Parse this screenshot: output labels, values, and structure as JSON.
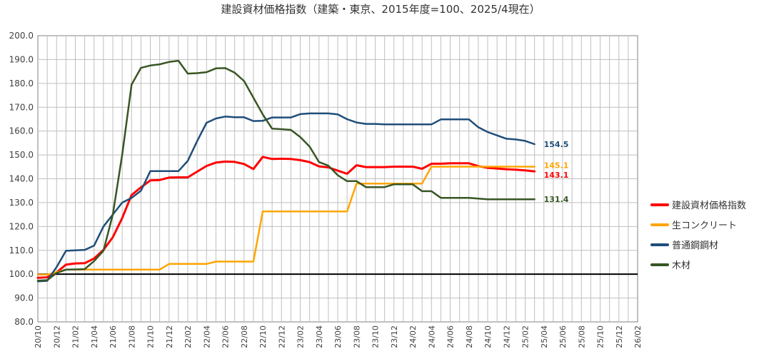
{
  "chart_data": {
    "type": "line",
    "title": "建設資材価格指数（建築・東京、2015年度=100、2025/4現在）",
    "ylim": [
      80,
      200
    ],
    "yticks": [
      "80.0",
      "90.0",
      "100.0",
      "110.0",
      "120.0",
      "130.0",
      "140.0",
      "150.0",
      "160.0",
      "170.0",
      "180.0",
      "190.0",
      "200.0"
    ],
    "reference_line": 100,
    "grid": true,
    "legend_position": "right",
    "x_labels": [
      "20/10",
      "20/12",
      "21/02",
      "21/04",
      "21/06",
      "21/08",
      "21/10",
      "21/12",
      "22/02",
      "22/04",
      "22/06",
      "22/08",
      "22/10",
      "22/12",
      "23/02",
      "23/04",
      "23/06",
      "23/08",
      "23/10",
      "23/12",
      "24/02",
      "24/04",
      "24/06",
      "24/08",
      "24/10",
      "24/12",
      "25/02",
      "25/04",
      "25/06",
      "25/08",
      "25/10",
      "25/12",
      "26/02"
    ],
    "series": [
      {
        "name": "建設資材価格指数",
        "color": "#ff0000",
        "width": 3,
        "end_label": "143.1",
        "values": [
          98.5,
          98.7,
          100.8,
          104.0,
          104.5,
          104.6,
          106.6,
          110.2,
          115.5,
          123.5,
          133.2,
          136.4,
          139.3,
          139.5,
          140.5,
          140.6,
          140.6,
          143.0,
          145.4,
          146.8,
          147.2,
          147.1,
          146.2,
          144.1,
          149.2,
          148.3,
          148.4,
          148.3,
          147.8,
          147.0,
          145.2,
          144.8,
          143.4,
          142.1,
          145.7,
          144.9,
          144.9,
          144.9,
          145.1,
          145.1,
          145.1,
          144.2,
          146.3,
          146.3,
          146.5,
          146.5,
          146.5,
          145.3,
          144.6,
          144.3,
          144.0,
          143.8,
          143.5,
          143.1
        ]
      },
      {
        "name": "生コンクリート",
        "color": "#ffa500",
        "width": 2.5,
        "end_label": "145.1",
        "values": [
          99.8,
          99.8,
          100.9,
          101.9,
          101.9,
          101.9,
          101.9,
          101.9,
          101.9,
          101.9,
          101.9,
          101.9,
          101.9,
          101.9,
          104.3,
          104.3,
          104.3,
          104.3,
          104.3,
          105.3,
          105.3,
          105.3,
          105.3,
          105.3,
          126.3,
          126.3,
          126.3,
          126.3,
          126.3,
          126.3,
          126.3,
          126.3,
          126.3,
          126.3,
          138.0,
          138.0,
          138.0,
          138.0,
          138.0,
          138.0,
          138.0,
          138.0,
          145.1,
          145.1,
          145.1,
          145.1,
          145.1,
          145.1,
          145.1,
          145.1,
          145.1,
          145.1,
          145.1,
          145.1
        ]
      },
      {
        "name": "普通鋼鋼材",
        "color": "#1f4e79",
        "width": 2.5,
        "end_label": "154.5",
        "values": [
          97.0,
          97.2,
          103.0,
          109.8,
          110.0,
          110.2,
          112.0,
          120.0,
          125.0,
          130.0,
          132.0,
          135.0,
          143.2,
          143.2,
          143.2,
          143.2,
          147.5,
          155.8,
          163.5,
          165.3,
          166.1,
          165.8,
          165.8,
          164.2,
          164.3,
          165.7,
          165.7,
          165.7,
          167.1,
          167.4,
          167.4,
          167.4,
          167.0,
          165.0,
          163.6,
          163.0,
          163.0,
          162.8,
          162.8,
          162.8,
          162.8,
          162.8,
          162.8,
          164.9,
          164.9,
          164.9,
          164.9,
          161.6,
          159.6,
          158.2,
          156.8,
          156.5,
          155.9,
          154.5
        ]
      },
      {
        "name": "木材",
        "color": "#375623",
        "width": 2.5,
        "end_label": "131.4",
        "values": [
          97.3,
          97.5,
          100.5,
          101.9,
          102.0,
          102.1,
          105.5,
          109.8,
          125.0,
          150.0,
          179.5,
          186.5,
          187.5,
          188.0,
          189.0,
          189.5,
          184.1,
          184.3,
          184.7,
          186.3,
          186.4,
          184.5,
          181.0,
          174.0,
          167.0,
          161.0,
          160.8,
          160.5,
          157.5,
          153.5,
          147.0,
          145.5,
          141.5,
          139.0,
          139.0,
          136.5,
          136.5,
          136.5,
          137.7,
          137.7,
          137.7,
          134.8,
          134.8,
          132.0,
          132.0,
          132.0,
          132.0,
          131.7,
          131.4,
          131.4,
          131.4,
          131.4,
          131.4,
          131.4
        ]
      }
    ]
  }
}
